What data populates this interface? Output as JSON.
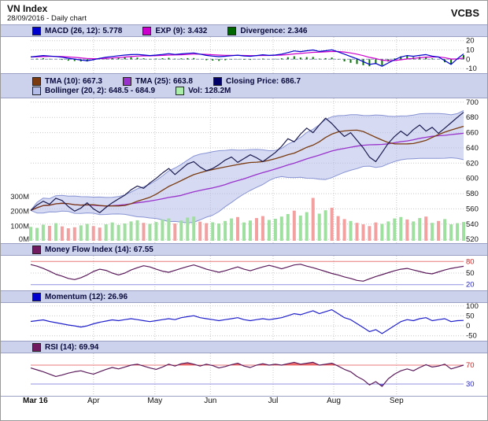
{
  "header": {
    "title": "VN Index",
    "subtitle": "28/09/2016 - Daily chart",
    "brand": "VCBS"
  },
  "panels": {
    "macd": {
      "legend": [
        {
          "label": "MACD (26, 12): 5.778",
          "color": "#0000cc"
        },
        {
          "label": "EXP (9): 3.432",
          "color": "#cc00cc"
        },
        {
          "label": "Divergence: 2.346",
          "color": "#006600"
        }
      ]
    },
    "main": {
      "legend_row1": [
        {
          "label": "TMA (10): 667.3",
          "color": "#7a3b10"
        },
        {
          "label": "TMA (25): 663.8",
          "color": "#9933cc"
        },
        {
          "label": "Closing Price: 686.7",
          "color": "#000066"
        }
      ],
      "legend_row2": [
        {
          "label": "Bollinger (20, 2): 648.5 - 684.9",
          "color": "#b4bce8"
        },
        {
          "label": "Vol: 128.2M",
          "color": "#aaeeaa"
        }
      ]
    },
    "mfi": {
      "legend": [
        {
          "label": "Money Flow Index (14): 67.55",
          "color": "#701a60"
        }
      ]
    },
    "momentum": {
      "legend": [
        {
          "label": "Momentum (12): 26.96",
          "color": "#0000cc"
        }
      ]
    },
    "rsi": {
      "legend": [
        {
          "label": "RSI (14): 69.94",
          "color": "#701a60"
        }
      ]
    }
  },
  "xaxis": {
    "labels": [
      "Mar 16",
      "Apr",
      "May",
      "Jun",
      "Jul",
      "Aug",
      "Sep"
    ],
    "fractions": [
      0,
      0.145,
      0.287,
      0.415,
      0.56,
      0.7,
      0.845
    ]
  },
  "chart_data": {
    "type": "line",
    "title": "VN Index - 28/09/2016 - Daily chart",
    "panels_top_to_bottom": [
      "MACD",
      "Price+Bollinger+Volume",
      "Money Flow Index",
      "Momentum",
      "RSI"
    ],
    "x_months": [
      "Mar 16",
      "Apr",
      "May",
      "Jun",
      "Jul",
      "Aug",
      "Sep"
    ],
    "close": [
      558,
      565,
      570,
      566,
      574,
      571,
      563,
      557,
      561,
      568,
      560,
      555,
      562,
      568,
      573,
      578,
      585,
      590,
      587,
      594,
      600,
      607,
      613,
      605,
      612,
      619,
      622,
      615,
      610,
      613,
      618,
      624,
      628,
      621,
      626,
      631,
      627,
      622,
      628,
      634,
      642,
      652,
      648,
      658,
      666,
      660,
      670,
      679,
      672,
      663,
      655,
      660,
      650,
      640,
      628,
      622,
      634,
      646,
      655,
      662,
      656,
      664,
      670,
      662,
      667,
      659,
      666,
      673,
      680,
      686.7
    ],
    "volume_m": [
      95,
      88,
      110,
      102,
      120,
      98,
      85,
      92,
      105,
      115,
      100,
      90,
      112,
      125,
      108,
      118,
      132,
      140,
      122,
      115,
      128,
      145,
      152,
      118,
      138,
      158,
      165,
      130,
      120,
      126,
      118,
      135,
      152,
      162,
      125,
      138,
      155,
      168,
      142,
      150,
      165,
      182,
      205,
      172,
      195,
      292,
      185,
      208,
      225,
      168,
      148,
      135,
      122,
      112,
      100,
      125,
      115,
      132,
      152,
      162,
      145,
      132,
      155,
      165,
      122,
      135,
      148,
      112,
      120,
      128.2
    ],
    "macd": [
      2.5,
      3.2,
      4.0,
      3.5,
      3.0,
      2.2,
      1.0,
      0.2,
      -0.8,
      -1.5,
      -0.5,
      1.0,
      2.2,
      3.0,
      3.8,
      4.5,
      5.0,
      5.2,
      4.6,
      4.0,
      4.5,
      5.2,
      6.0,
      5.2,
      5.8,
      6.4,
      6.8,
      5.5,
      4.2,
      3.4,
      2.8,
      3.2,
      3.8,
      4.4,
      3.6,
      3.2,
      4.0,
      4.8,
      4.2,
      4.6,
      5.5,
      7.2,
      9.0,
      8.2,
      9.2,
      10.0,
      8.4,
      9.2,
      10.2,
      8.0,
      5.5,
      3.0,
      0.5,
      -2.5,
      -5.5,
      -4.5,
      -7.5,
      -4.0,
      -0.5,
      2.5,
      4.0,
      3.2,
      4.2,
      5.0,
      3.4,
      2.4,
      -1.5,
      -5.5,
      0.5,
      5.778
    ],
    "mfi": [
      72,
      68,
      62,
      55,
      47,
      42,
      36,
      33,
      38,
      45,
      54,
      60,
      57,
      50,
      45,
      50,
      58,
      64,
      69,
      66,
      60,
      55,
      52,
      57,
      62,
      67,
      71,
      66,
      60,
      56,
      52,
      56,
      61,
      66,
      60,
      56,
      61,
      66,
      70,
      66,
      61,
      66,
      71,
      73,
      68,
      64,
      59,
      54,
      49,
      45,
      40,
      36,
      31,
      29,
      35,
      41,
      46,
      51,
      56,
      60,
      62,
      58,
      54,
      50,
      48,
      53,
      58,
      62,
      65,
      67.55
    ],
    "momentum": [
      22,
      26,
      30,
      22,
      16,
      10,
      4,
      0,
      -6,
      0,
      10,
      18,
      24,
      30,
      26,
      31,
      36,
      31,
      26,
      21,
      26,
      31,
      36,
      31,
      41,
      46,
      51,
      41,
      36,
      31,
      26,
      31,
      36,
      41,
      31,
      26,
      31,
      36,
      31,
      36,
      41,
      51,
      61,
      56,
      66,
      76,
      61,
      71,
      81,
      61,
      41,
      31,
      11,
      -9,
      -29,
      -19,
      -39,
      -19,
      1,
      21,
      31,
      26,
      36,
      41,
      26,
      31,
      36,
      21,
      26,
      26.96
    ],
    "rsi": [
      64,
      60,
      56,
      51,
      46,
      49,
      53,
      56,
      58,
      54,
      51,
      56,
      61,
      65,
      62,
      66,
      70,
      72,
      68,
      64,
      61,
      66,
      72,
      68,
      73,
      75,
      72,
      68,
      72,
      69,
      64,
      67,
      71,
      74,
      68,
      65,
      70,
      73,
      70,
      72,
      70,
      73,
      76,
      72,
      74,
      76,
      70,
      72,
      74,
      68,
      61,
      56,
      46,
      39,
      28,
      35,
      25,
      41,
      51,
      58,
      62,
      58,
      65,
      71,
      66,
      68,
      72,
      62,
      66,
      69.94
    ],
    "axes": {
      "price": {
        "min": 515,
        "max": 705,
        "ticks": [
          700,
          680,
          660,
          640,
          620,
          600,
          580,
          560,
          540,
          520
        ]
      },
      "volume": {
        "max_m": 300,
        "tick_labels": [
          "300M",
          "200M",
          "100M",
          "0M"
        ],
        "tick_values": [
          300,
          200,
          100,
          0
        ]
      },
      "macd": {
        "min": -15,
        "max": 24,
        "ticks": [
          20,
          10,
          0,
          -10
        ]
      },
      "mfi": {
        "min": 5,
        "max": 95,
        "ticks": [
          80,
          50,
          20
        ],
        "threshold_upper": 80,
        "threshold_lower": 20
      },
      "momentum": {
        "min": -75,
        "max": 115,
        "ticks": [
          100,
          50,
          0,
          -50
        ]
      },
      "rsi": {
        "min": 5,
        "max": 95,
        "ticks": [
          70,
          30
        ],
        "threshold_upper": 70,
        "threshold_lower": 30
      }
    },
    "colors": {
      "close": "#1b1b50",
      "tma10": "#7a3b10",
      "tma25": "#9933cc",
      "boll_fill": "#b4bce8",
      "boll_edge": "#8894d4",
      "vol_up": "#9fdf9f",
      "vol_down": "#f2a0a0",
      "macd": "#0000cc",
      "macd_signal": "#cc00cc",
      "divergence": "#007700",
      "mfi": "#5a1a5a",
      "momentum": "#2020cc",
      "rsi": "#5a1a5a",
      "threshold_red": "#e87878",
      "threshold_blue": "#9090e0",
      "fill_over": "#e84040",
      "fill_under": "#4040e8",
      "grid": "#c8c8c8",
      "label_red": "#cc2222",
      "label_blue": "#2222cc"
    }
  }
}
